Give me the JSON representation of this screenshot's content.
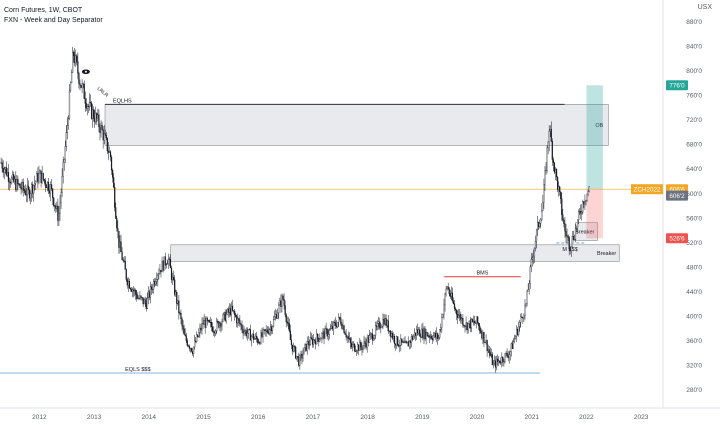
{
  "header": {
    "title": "Corn Futures, 1W, CBOT",
    "indicator": "FXN - Week and Day Separator",
    "currency": "USX"
  },
  "colors": {
    "candle": "#131722",
    "zone_fill": "#e9eaee",
    "zone_stroke": "#888888",
    "target_green": "#26a69a",
    "stop_red": "#ef5350",
    "price_line": "#f5a623",
    "eqls_line": "#5b9bd5",
    "bms_line": "#e53935",
    "axis_text": "#555b66"
  },
  "chart_data": {
    "type": "candlestick",
    "title": "Corn Futures, 1W, CBOT",
    "y_unit": "USX",
    "ylim": [
      250,
      915
    ],
    "xlim": [
      2011.28,
      2023.4
    ],
    "x_ticks": [
      "2012",
      "2013",
      "2014",
      "2015",
      "2016",
      "2017",
      "2018",
      "2019",
      "2020",
      "2021",
      "2022",
      "2023"
    ],
    "y_ticks": [
      "880'0",
      "840'0",
      "800'0",
      "760'0",
      "720'0",
      "680'0",
      "640'0",
      "600'0",
      "560'0",
      "520'0",
      "480'0",
      "440'0",
      "400'0",
      "360'0",
      "320'0",
      "280'0"
    ],
    "price_path": [
      [
        2011.3,
        650
      ],
      [
        2011.5,
        620
      ],
      [
        2011.8,
        600
      ],
      [
        2012.0,
        630
      ],
      [
        2012.2,
        610
      ],
      [
        2012.35,
        560
      ],
      [
        2012.5,
        700
      ],
      [
        2012.62,
        830
      ],
      [
        2012.75,
        780
      ],
      [
        2012.9,
        740
      ],
      [
        2013.05,
        720
      ],
      [
        2013.15,
        700
      ],
      [
        2013.3,
        660
      ],
      [
        2013.45,
        520
      ],
      [
        2013.6,
        460
      ],
      [
        2013.8,
        430
      ],
      [
        2013.95,
        420
      ],
      [
        2014.15,
        470
      ],
      [
        2014.35,
        495
      ],
      [
        2014.5,
        430
      ],
      [
        2014.65,
        365
      ],
      [
        2014.8,
        345
      ],
      [
        2015.0,
        390
      ],
      [
        2015.2,
        380
      ],
      [
        2015.5,
        410
      ],
      [
        2015.75,
        375
      ],
      [
        2016.0,
        360
      ],
      [
        2016.25,
        385
      ],
      [
        2016.45,
        430
      ],
      [
        2016.6,
        355
      ],
      [
        2016.75,
        325
      ],
      [
        2016.9,
        355
      ],
      [
        2017.1,
        365
      ],
      [
        2017.3,
        375
      ],
      [
        2017.5,
        395
      ],
      [
        2017.7,
        350
      ],
      [
        2017.9,
        350
      ],
      [
        2018.1,
        370
      ],
      [
        2018.3,
        395
      ],
      [
        2018.5,
        360
      ],
      [
        2018.7,
        350
      ],
      [
        2018.9,
        375
      ],
      [
        2019.1,
        370
      ],
      [
        2019.3,
        365
      ],
      [
        2019.45,
        450
      ],
      [
        2019.6,
        410
      ],
      [
        2019.8,
        385
      ],
      [
        2020.0,
        390
      ],
      [
        2020.15,
        360
      ],
      [
        2020.3,
        320
      ],
      [
        2020.45,
        330
      ],
      [
        2020.6,
        340
      ],
      [
        2020.75,
        380
      ],
      [
        2020.9,
        420
      ],
      [
        2021.0,
        490
      ],
      [
        2021.1,
        540
      ],
      [
        2021.2,
        580
      ],
      [
        2021.32,
        710
      ],
      [
        2021.4,
        650
      ],
      [
        2021.5,
        600
      ],
      [
        2021.6,
        540
      ],
      [
        2021.7,
        515
      ],
      [
        2021.8,
        540
      ],
      [
        2021.95,
        590
      ],
      [
        2022.05,
        606
      ]
    ],
    "zones": [
      {
        "label": "OB",
        "x": [
          2013.2,
          2022.4
        ],
        "y": [
          678,
          745
        ]
      },
      {
        "label": "Breaker",
        "x": [
          2014.4,
          2022.6
        ],
        "y": [
          489,
          516
        ]
      },
      {
        "label": "Breaker",
        "x": [
          2021.8,
          2022.2
        ],
        "y": [
          523,
          552
        ]
      }
    ],
    "trade": {
      "entry": 606.2,
      "target": 776.0,
      "stop": 526.6,
      "x": [
        2022.0,
        2022.3
      ],
      "target_label": "776'0",
      "stop_label": "526'6"
    },
    "levels": [
      {
        "label": "EQLHS",
        "y": 745,
        "x": [
          2013.2,
          2021.6
        ]
      },
      {
        "label": "BMS",
        "y": 464,
        "x": [
          2019.4,
          2020.8
        ]
      },
      {
        "label": "EQLS $$$",
        "y": 307,
        "x": [
          2011.28,
          2021.15
        ]
      },
      {
        "label": "M $$$",
        "y": 519,
        "x": [
          2021.45,
          2022.0
        ]
      }
    ],
    "annotations": [
      {
        "label": "LRLR",
        "x": 2013.05,
        "y": 770
      }
    ],
    "current_price": {
      "value": 606.6,
      "symbol": "ZCH2022",
      "label": "606'6",
      "prev_label": "606'2"
    }
  }
}
